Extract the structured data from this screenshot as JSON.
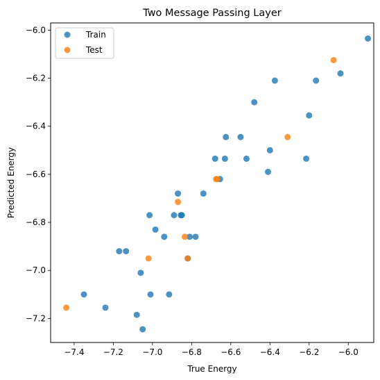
{
  "chart_data": {
    "type": "scatter",
    "title": "Two Message Passing Layer",
    "xlabel": "True Energy",
    "ylabel": "Predicted Energy",
    "xlim": [
      -7.52,
      -5.87
    ],
    "ylim": [
      -7.3,
      -5.97
    ],
    "xticks": [
      -7.4,
      -7.2,
      -7.0,
      -6.8,
      -6.6,
      -6.4,
      -6.2,
      -6.0
    ],
    "yticks": [
      -7.2,
      -7.0,
      -6.8,
      -6.6,
      -6.4,
      -6.2,
      -6.0
    ],
    "xtick_labels": [
      "−7.4",
      "−7.2",
      "−7.0",
      "−6.8",
      "−6.6",
      "−6.4",
      "−6.2",
      "−6.0"
    ],
    "ytick_labels": [
      "−7.2",
      "−7.0",
      "−6.8",
      "−6.6",
      "−6.4",
      "−6.2",
      "−6.0"
    ],
    "grid": false,
    "legend_position": "top-left",
    "series": [
      {
        "name": "Train",
        "color": "#1f77b4",
        "points": [
          [
            -5.9,
            -6.035
          ],
          [
            -6.04,
            -6.18
          ],
          [
            -6.165,
            -6.21
          ],
          [
            -6.375,
            -6.21
          ],
          [
            -6.48,
            -6.3
          ],
          [
            -6.2,
            -6.355
          ],
          [
            -6.625,
            -6.445
          ],
          [
            -6.55,
            -6.445
          ],
          [
            -6.4,
            -6.5
          ],
          [
            -6.68,
            -6.535
          ],
          [
            -6.63,
            -6.535
          ],
          [
            -6.52,
            -6.535
          ],
          [
            -6.215,
            -6.535
          ],
          [
            -6.41,
            -6.59
          ],
          [
            -6.655,
            -6.62
          ],
          [
            -6.74,
            -6.68
          ],
          [
            -6.87,
            -6.68
          ],
          [
            -6.89,
            -6.77
          ],
          [
            -6.855,
            -6.77
          ],
          [
            -6.85,
            -6.77
          ],
          [
            -7.015,
            -6.77
          ],
          [
            -6.985,
            -6.83
          ],
          [
            -6.94,
            -6.86
          ],
          [
            -6.81,
            -6.86
          ],
          [
            -6.78,
            -6.86
          ],
          [
            -7.17,
            -6.92
          ],
          [
            -7.135,
            -6.92
          ],
          [
            -7.06,
            -7.01
          ],
          [
            -6.82,
            -6.95
          ],
          [
            -7.35,
            -7.1
          ],
          [
            -7.01,
            -7.1
          ],
          [
            -6.915,
            -7.1
          ],
          [
            -7.24,
            -7.155
          ],
          [
            -7.08,
            -7.185
          ],
          [
            -7.05,
            -7.245
          ]
        ]
      },
      {
        "name": "Test",
        "color": "#ff7f0e",
        "points": [
          [
            -6.075,
            -6.125
          ],
          [
            -6.31,
            -6.445
          ],
          [
            -6.675,
            -6.62
          ],
          [
            -6.67,
            -6.62
          ],
          [
            -6.87,
            -6.715
          ],
          [
            -6.835,
            -6.86
          ],
          [
            -7.02,
            -6.95
          ],
          [
            -6.82,
            -6.95
          ],
          [
            -7.44,
            -7.155
          ]
        ]
      }
    ]
  }
}
